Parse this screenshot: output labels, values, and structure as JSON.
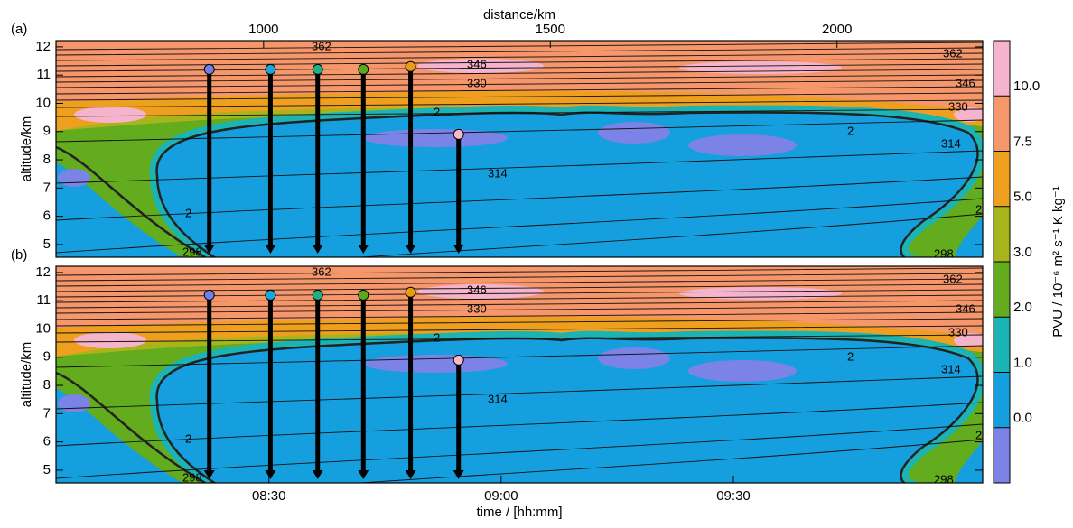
{
  "chart_data": [
    {
      "type": "contour",
      "panel_label": "(a)",
      "ylabel": "altitude/km",
      "ylim": [
        4.55,
        12.22
      ],
      "yticks": [
        5,
        6,
        7,
        8,
        9,
        10,
        11,
        12
      ],
      "xlim": [
        482.5,
        602.2
      ],
      "x2label": "distance/km",
      "x2lim": [
        638,
        2254
      ],
      "x2ticks": [
        1000,
        1500,
        2000
      ],
      "dropsondes": {
        "x": [
          502.3,
          510.2,
          516.3,
          522.2,
          528.3,
          534.5
        ],
        "tops": [
          11.2,
          11.2,
          11.2,
          11.2,
          11.3,
          8.9
        ],
        "colors": [
          "#6f80e6",
          "#1aa6dc",
          "#1fb083",
          "#5aa81e",
          "#e89c12",
          "#f7b8c9"
        ]
      }
    },
    {
      "type": "contour",
      "panel_label": "(b)",
      "ylabel": "altitude/km",
      "ylim": [
        4.55,
        12.22
      ],
      "yticks": [
        5,
        6,
        7,
        8,
        9,
        10,
        11,
        12
      ],
      "xlabel": "time / [hh:mm]",
      "xlim": [
        482.5,
        602.2
      ],
      "xticks": [
        {
          "value": 510,
          "label": "08:30"
        },
        {
          "value": 540,
          "label": "09:00"
        },
        {
          "value": 570,
          "label": "09:30"
        }
      ],
      "dropsondes": {
        "x": [
          502.3,
          510.2,
          516.3,
          522.2,
          528.3,
          534.5
        ],
        "tops": [
          11.2,
          11.2,
          11.2,
          11.2,
          11.3,
          8.9
        ],
        "colors": [
          "#6f80e6",
          "#1aa6dc",
          "#1fb083",
          "#5aa81e",
          "#e89c12",
          "#f7b8c9"
        ]
      }
    }
  ],
  "colorbar": {
    "label": "PVU / 10⁻⁶ m² s⁻¹ K kg⁻¹",
    "levels": [
      {
        "value": 0,
        "label": "0.0"
      },
      {
        "value": 1,
        "label": "1.0"
      },
      {
        "value": 2,
        "label": "2.0"
      },
      {
        "value": 3,
        "label": "3.0"
      },
      {
        "value": 5,
        "label": "5.0"
      },
      {
        "value": 7.5,
        "label": "7.5"
      },
      {
        "value": 10,
        "label": "10.0"
      }
    ],
    "colors": [
      "#7b83e6",
      "#169fde",
      "#1bb3b3",
      "#62ac1e",
      "#a8b41b",
      "#ee9f1d",
      "#f6966b",
      "#f6b3cc"
    ]
  },
  "contour_labels": {
    "isentropes": [
      362,
      346,
      330,
      314,
      298
    ],
    "pv": 2
  }
}
